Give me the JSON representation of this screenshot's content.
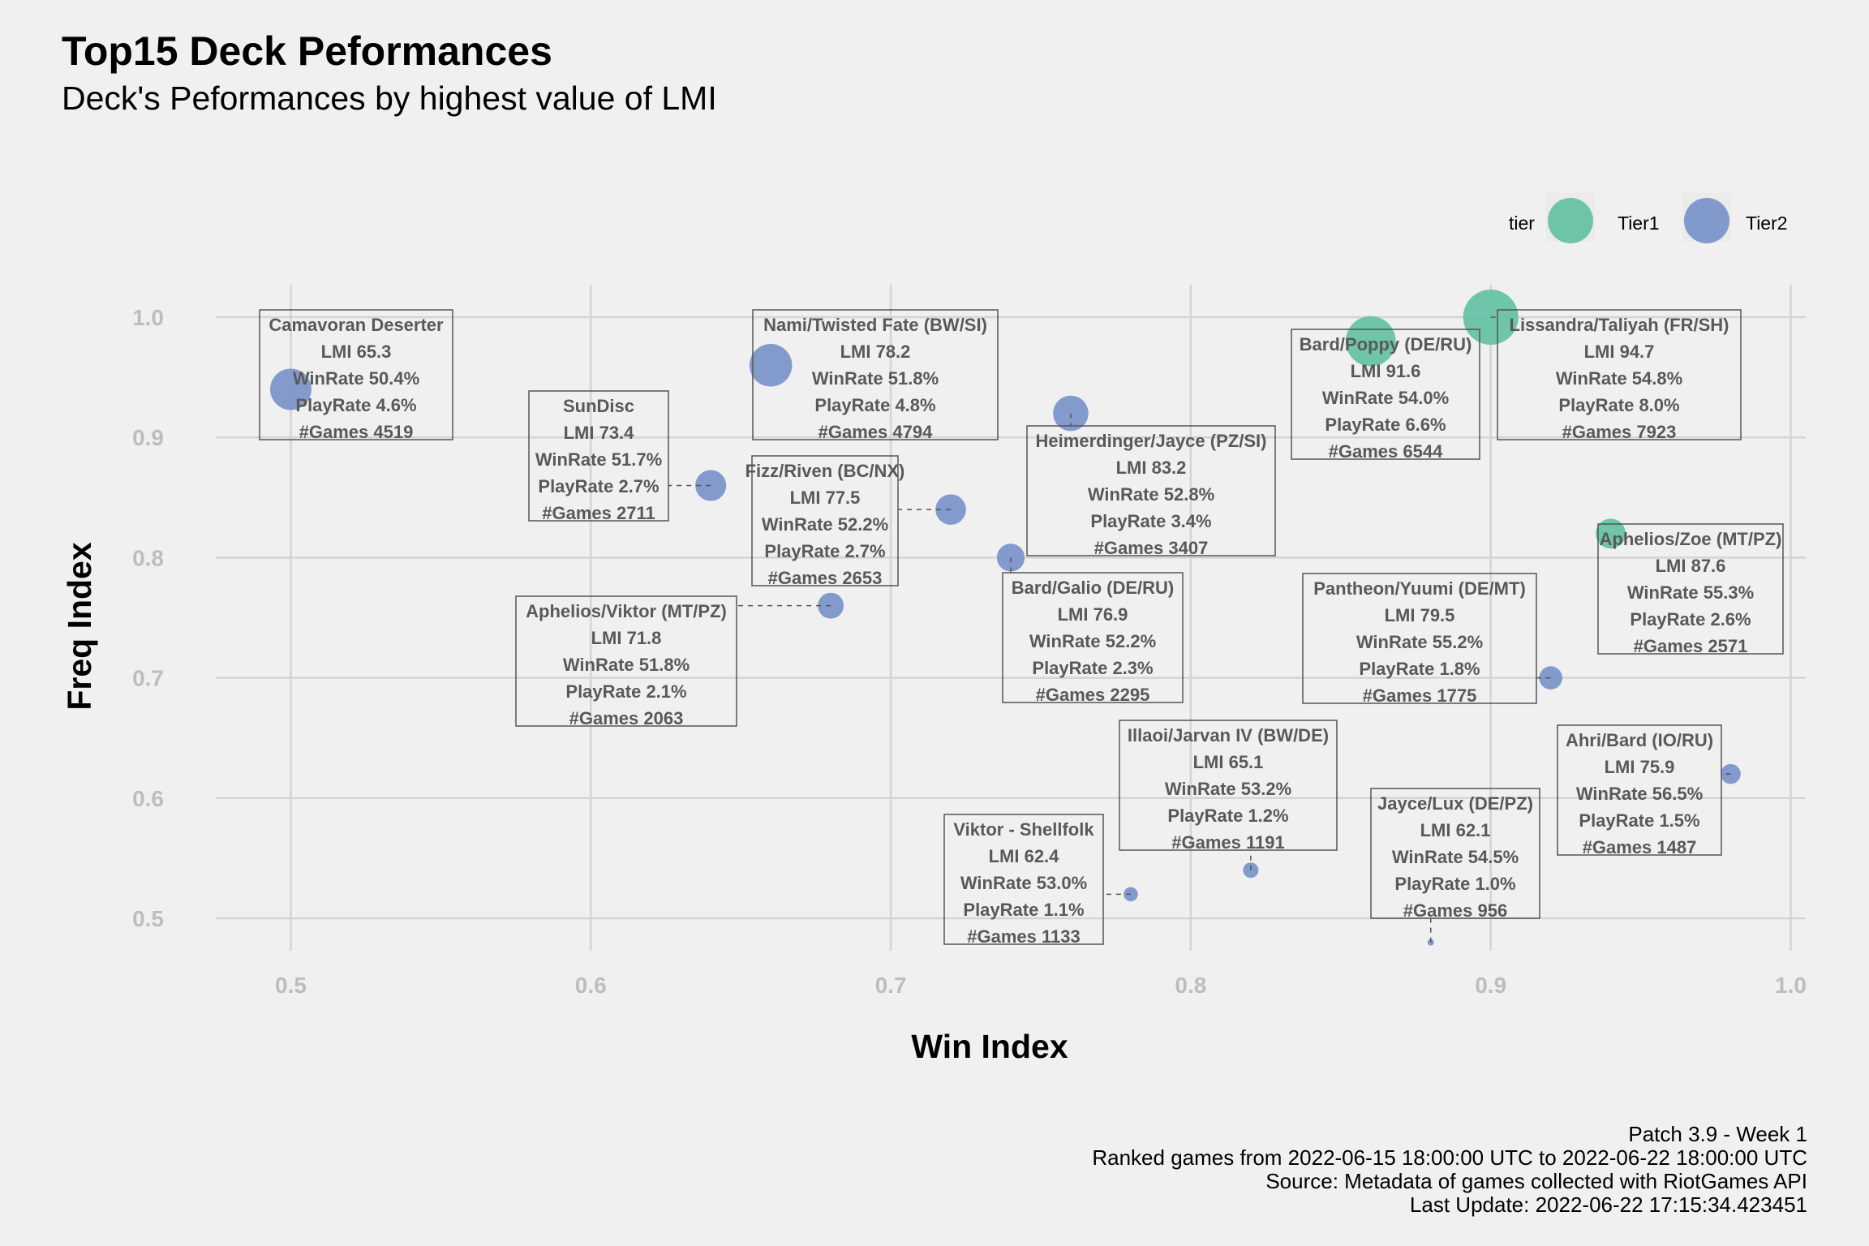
{
  "title": "Top15 Deck Peformances",
  "subtitle": "Deck's Peformances by highest value of LMI",
  "caption": [
    "Patch 3.9 - Week 1",
    "Ranked games from 2022-06-15 18:00:00 UTC to 2022-06-22 18:00:00 UTC",
    "Source: Metadata of games collected with RiotGames API",
    "Last Update: 2022-06-22 17:15:34.423451"
  ],
  "chart_data": {
    "type": "scatter",
    "xlabel": "Win Index",
    "ylabel": "Freq Index",
    "xlim": [
      0.475,
      1.005
    ],
    "ylim": [
      0.473,
      1.027
    ],
    "x_ticks": [
      0.5,
      0.6,
      0.7,
      0.8,
      0.9,
      1.0
    ],
    "y_ticks": [
      0.5,
      0.6,
      0.7,
      0.8,
      0.9,
      1.0
    ],
    "x_tick_labels": [
      "0.5",
      "0.6",
      "0.7",
      "0.8",
      "0.9",
      "1.0"
    ],
    "y_tick_labels": [
      "0.5",
      "0.6",
      "0.7",
      "0.8",
      "0.9",
      "1.0"
    ],
    "grid": true,
    "legend": {
      "title": "tier",
      "position": "top-right",
      "entries": [
        {
          "name": "Tier1",
          "color": "#66c2a5"
        },
        {
          "name": "Tier2",
          "color": "#7b96c9"
        }
      ]
    },
    "points": [
      {
        "deck": "Lissandra/Taliyah (FR/SH)",
        "x": 0.9,
        "y": 1.0,
        "tier": "Tier1",
        "lmi": "LMI 94.7",
        "winrate": "WinRate 54.8%",
        "playrate": "PlayRate 8.0%",
        "games": "#Games 7923",
        "games_n": 7923
      },
      {
        "deck": "Bard/Poppy (DE/RU)",
        "x": 0.86,
        "y": 0.98,
        "tier": "Tier1",
        "lmi": "LMI 91.6",
        "winrate": "WinRate 54.0%",
        "playrate": "PlayRate 6.6%",
        "games": "#Games 6544",
        "games_n": 6544
      },
      {
        "deck": "Aphelios/Zoe (MT/PZ)",
        "x": 0.94,
        "y": 0.82,
        "tier": "Tier1",
        "lmi": "LMI 87.6",
        "winrate": "WinRate 55.3%",
        "playrate": "PlayRate 2.6%",
        "games": "#Games 2571",
        "games_n": 2571
      },
      {
        "deck": "Heimerdinger/Jayce (PZ/SI)",
        "x": 0.76,
        "y": 0.92,
        "tier": "Tier2",
        "lmi": "LMI 83.2",
        "winrate": "WinRate 52.8%",
        "playrate": "PlayRate 3.4%",
        "games": "#Games 3407",
        "games_n": 3407
      },
      {
        "deck": "Pantheon/Yuumi (DE/MT)",
        "x": 0.92,
        "y": 0.7,
        "tier": "Tier2",
        "lmi": "LMI 79.5",
        "winrate": "WinRate 55.2%",
        "playrate": "PlayRate 1.8%",
        "games": "#Games 1775",
        "games_n": 1775
      },
      {
        "deck": "Nami/Twisted Fate (BW/SI)",
        "x": 0.66,
        "y": 0.96,
        "tier": "Tier2",
        "lmi": "LMI 78.2",
        "winrate": "WinRate 51.8%",
        "playrate": "PlayRate 4.8%",
        "games": "#Games 4794",
        "games_n": 4794
      },
      {
        "deck": "Fizz/Riven (BC/NX)",
        "x": 0.72,
        "y": 0.84,
        "tier": "Tier2",
        "lmi": "LMI 77.5",
        "winrate": "WinRate 52.2%",
        "playrate": "PlayRate 2.7%",
        "games": "#Games 2653",
        "games_n": 2653
      },
      {
        "deck": "Bard/Galio (DE/RU)",
        "x": 0.74,
        "y": 0.8,
        "tier": "Tier2",
        "lmi": "LMI 76.9",
        "winrate": "WinRate 52.2%",
        "playrate": "PlayRate 2.3%",
        "games": "#Games 2295",
        "games_n": 2295
      },
      {
        "deck": "Ahri/Bard (IO/RU)",
        "x": 0.98,
        "y": 0.62,
        "tier": "Tier2",
        "lmi": "LMI 75.9",
        "winrate": "WinRate 56.5%",
        "playrate": "PlayRate 1.5%",
        "games": "#Games 1487",
        "games_n": 1487
      },
      {
        "deck": "SunDisc",
        "x": 0.64,
        "y": 0.86,
        "tier": "Tier2",
        "lmi": "LMI 73.4",
        "winrate": "WinRate 51.7%",
        "playrate": "PlayRate 2.7%",
        "games": "#Games 2711",
        "games_n": 2711
      },
      {
        "deck": "Aphelios/Viktor (MT/PZ)",
        "x": 0.68,
        "y": 0.76,
        "tier": "Tier2",
        "lmi": "LMI 71.8",
        "winrate": "WinRate 51.8%",
        "playrate": "PlayRate 2.1%",
        "games": "#Games 2063",
        "games_n": 2063
      },
      {
        "deck": "Camavoran Deserter",
        "x": 0.5,
        "y": 0.94,
        "tier": "Tier2",
        "lmi": "LMI 65.3",
        "winrate": "WinRate 50.4%",
        "playrate": "PlayRate 4.6%",
        "games": "#Games 4519",
        "games_n": 4519
      },
      {
        "deck": "Illaoi/Jarvan IV (BW/DE)",
        "x": 0.82,
        "y": 0.54,
        "tier": "Tier2",
        "lmi": "LMI 65.1",
        "winrate": "WinRate 53.2%",
        "playrate": "PlayRate 1.2%",
        "games": "#Games 1191",
        "games_n": 1191
      },
      {
        "deck": "Viktor - Shellfolk",
        "x": 0.78,
        "y": 0.52,
        "tier": "Tier2",
        "lmi": "LMI 62.4",
        "winrate": "WinRate 53.0%",
        "playrate": "PlayRate 1.1%",
        "games": "#Games 1133",
        "games_n": 1133
      },
      {
        "deck": "Jayce/Lux (DE/PZ)",
        "x": 0.88,
        "y": 0.48,
        "tier": "Tier2",
        "lmi": "LMI 62.1",
        "winrate": "WinRate 54.5%",
        "playrate": "PlayRate 1.0%",
        "games": "#Games 956",
        "games_n": 956
      }
    ]
  }
}
